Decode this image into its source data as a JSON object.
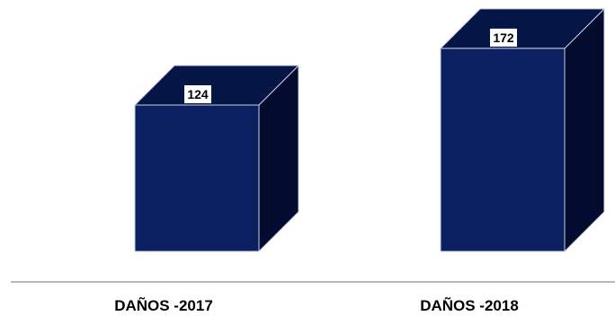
{
  "chart_data": {
    "type": "bar",
    "style": "3d-box",
    "categories": [
      "DAÑOS -2017",
      "DAÑOS -2018"
    ],
    "values": [
      124,
      172
    ],
    "title": "",
    "xlabel": "",
    "ylabel": "",
    "ylim": [
      0,
      200
    ],
    "grid": false,
    "legend": "none",
    "colors": {
      "front": "#0a2060",
      "top": "#051545",
      "side": "#030c2e",
      "edge": "#c8d0e0",
      "axis": "#9aa0a8",
      "label_box": "#ffffff"
    }
  }
}
